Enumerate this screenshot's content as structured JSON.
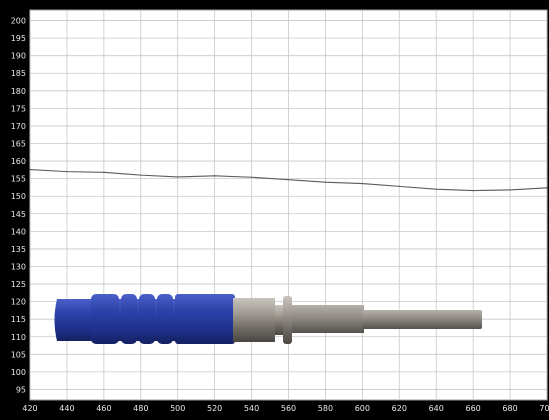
{
  "chart_data": {
    "type": "line",
    "title": "",
    "xlabel": "",
    "ylabel": "",
    "xlim": [
      420,
      700
    ],
    "ylim": [
      92,
      203
    ],
    "xticks": [
      420,
      440,
      460,
      480,
      500,
      520,
      540,
      560,
      580,
      600,
      620,
      640,
      660,
      680,
      700
    ],
    "yticks": [
      95,
      100,
      105,
      110,
      115,
      120,
      125,
      130,
      135,
      140,
      145,
      150,
      155,
      160,
      165,
      170,
      175,
      180,
      185,
      190,
      195,
      200
    ],
    "grid": true,
    "background": "#ffffff",
    "grid_color": "#c8c8c8",
    "line_color": "#5a5a5a",
    "series": [
      {
        "x": [
          420,
          440,
          460,
          480,
          500,
          520,
          540,
          560,
          580,
          600,
          620,
          640,
          660,
          680,
          700
        ],
        "values": [
          157.6,
          157.0,
          156.8,
          156.0,
          155.5,
          155.8,
          155.4,
          154.7,
          154.0,
          153.6,
          152.8,
          152.0,
          151.6,
          151.8,
          152.4
        ]
      }
    ],
    "overlay": {
      "name": "probe-image",
      "handle_color": "#2a3d9e",
      "metal_color": "#8a8580"
    }
  }
}
